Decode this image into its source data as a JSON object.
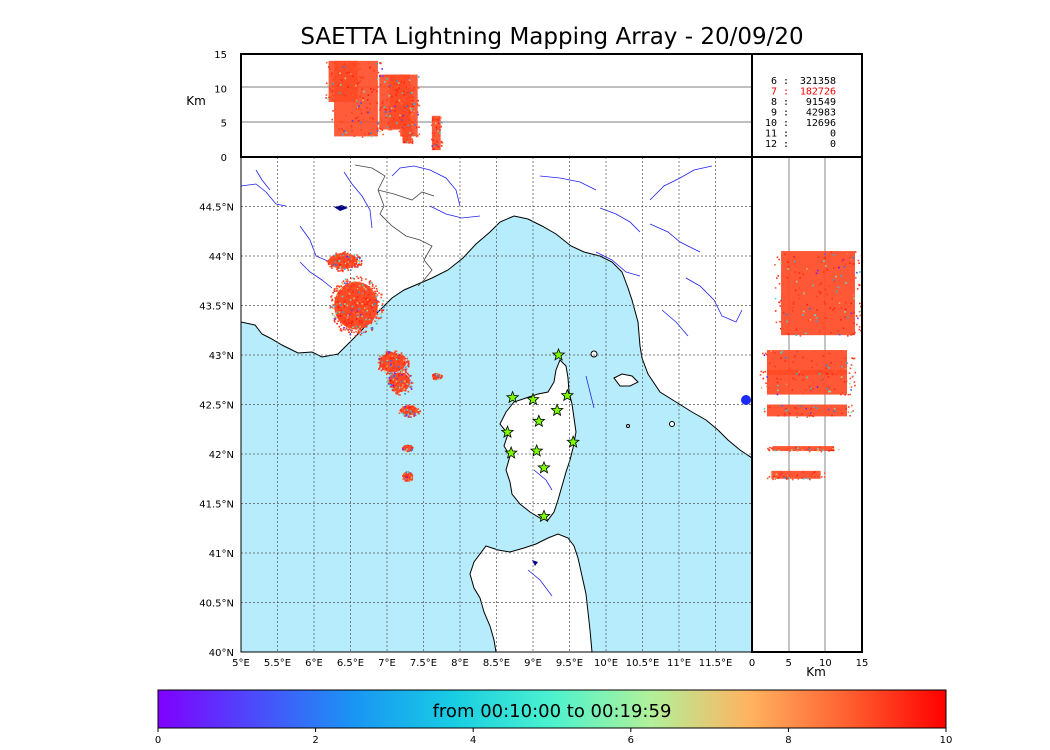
{
  "title": "SAETTA Lightning Mapping Array - 20/09/20",
  "alt_axis_label": "Km",
  "alt_ticks": [
    "0",
    "5",
    "10",
    "15"
  ],
  "lon_ticks": [
    "5°E",
    "5.5°E",
    "6°E",
    "6.5°E",
    "7°E",
    "7.5°E",
    "8°E",
    "8.5°E",
    "9°E",
    "9.5°E",
    "10°E",
    "10.5°E",
    "11°E",
    "11.5°E"
  ],
  "lat_ticks": [
    "40°N",
    "40.5°N",
    "41°N",
    "41.5°N",
    "42°N",
    "42.5°N",
    "43°N",
    "43.5°N",
    "44°N",
    "44.5°N"
  ],
  "km_axis_label": "Km",
  "station_counts": [
    {
      "stations": "6",
      "count": "321358",
      "color": "#000000"
    },
    {
      "stations": "7",
      "count": "182726",
      "color": "#ff0000"
    },
    {
      "stations": "8",
      "count": "91549",
      "color": "#000000"
    },
    {
      "stations": "9",
      "count": "42983",
      "color": "#000000"
    },
    {
      "stations": "10",
      "count": "12696",
      "color": "#000000"
    },
    {
      "stations": "11",
      "count": "0",
      "color": "#000000"
    },
    {
      "stations": "12",
      "count": "0",
      "color": "#000000"
    }
  ],
  "colorbar": {
    "label": "from 00:10:00 to 00:19:59",
    "ticks": [
      "0",
      "2",
      "4",
      "6",
      "8",
      "10"
    ],
    "colormap": "rainbow",
    "range": [
      0,
      10
    ]
  },
  "colors": {
    "sea": "#b6ecfb",
    "land": "#ffffff",
    "rivers": "#0000ff",
    "borders": "#333333",
    "stations": "#7cfc00",
    "dominant": "#ff4a26"
  },
  "chart_data": {
    "type": "scatter",
    "title": "SAETTA Lightning Mapping Array - 20/09/20",
    "xlim": [
      5,
      12
    ],
    "ylim": [
      40,
      45
    ],
    "altitude_range_km": [
      0,
      15
    ],
    "colorbar_range_min": [
      0,
      10
    ],
    "stations": [
      {
        "lon": 9.35,
        "lat": 43.0
      },
      {
        "lon": 8.72,
        "lat": 42.57
      },
      {
        "lon": 9.0,
        "lat": 42.55
      },
      {
        "lon": 9.47,
        "lat": 42.59
      },
      {
        "lon": 9.33,
        "lat": 42.44
      },
      {
        "lon": 9.08,
        "lat": 42.33
      },
      {
        "lon": 8.65,
        "lat": 42.22
      },
      {
        "lon": 9.55,
        "lat": 42.12
      },
      {
        "lon": 8.7,
        "lat": 42.01
      },
      {
        "lon": 9.05,
        "lat": 42.03
      },
      {
        "lon": 9.15,
        "lat": 41.86
      },
      {
        "lon": 9.15,
        "lat": 41.37
      }
    ],
    "clusters": [
      {
        "lon_range": [
          6.15,
          6.65
        ],
        "lat_range": [
          43.85,
          44.05
        ],
        "alt_range": [
          8,
          14
        ]
      },
      {
        "lon_range": [
          6.2,
          6.95
        ],
        "lat_range": [
          43.2,
          43.8
        ],
        "alt_range": [
          3,
          14
        ]
      },
      {
        "lon_range": [
          6.85,
          7.3
        ],
        "lat_range": [
          42.8,
          43.05
        ],
        "alt_range": [
          4,
          12
        ]
      },
      {
        "lon_range": [
          7.0,
          7.35
        ],
        "lat_range": [
          42.6,
          42.85
        ],
        "alt_range": [
          4,
          12
        ]
      },
      {
        "lon_range": [
          7.15,
          7.45
        ],
        "lat_range": [
          42.38,
          42.5
        ],
        "alt_range": [
          3,
          12
        ]
      },
      {
        "lon_range": [
          7.2,
          7.35
        ],
        "lat_range": [
          42.03,
          42.1
        ],
        "alt_range": [
          2,
          10
        ]
      },
      {
        "lon_range": [
          7.2,
          7.35
        ],
        "lat_range": [
          41.73,
          41.83
        ],
        "alt_range": [
          2,
          10
        ]
      },
      {
        "lon_range": [
          7.6,
          7.75
        ],
        "lat_range": [
          42.76,
          42.82
        ],
        "alt_range": [
          1,
          6
        ]
      }
    ],
    "altitude_profile": [
      {
        "lat_range": [
          43.2,
          44.05
        ],
        "alt_range": [
          3,
          15
        ]
      },
      {
        "lat_range": [
          42.8,
          43.05
        ],
        "alt_range": [
          1,
          14
        ]
      },
      {
        "lat_range": [
          42.6,
          42.85
        ],
        "alt_range": [
          1,
          14
        ]
      },
      {
        "lat_range": [
          42.38,
          42.5
        ],
        "alt_range": [
          1,
          14
        ]
      },
      {
        "lat_range": [
          42.03,
          42.08
        ],
        "alt_range": [
          2,
          12
        ]
      },
      {
        "lat_range": [
          41.75,
          41.83
        ],
        "alt_range": [
          2,
          10
        ]
      }
    ],
    "station_counts": [
      {
        "stations": 6,
        "count": 321358
      },
      {
        "stations": 7,
        "count": 182726
      },
      {
        "stations": 8,
        "count": 91549
      },
      {
        "stations": 9,
        "count": 42983
      },
      {
        "stations": 10,
        "count": 12696
      },
      {
        "stations": 11,
        "count": 0
      },
      {
        "stations": 12,
        "count": 0
      }
    ]
  }
}
